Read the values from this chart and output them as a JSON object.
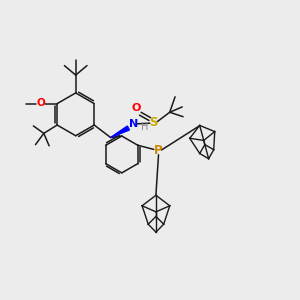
{
  "bg_color": "#ececec",
  "bond_color": "#1a1a1a",
  "colors": {
    "O": "#ff0000",
    "S": "#ccaa00",
    "N": "#0000ff",
    "P": "#cc8800",
    "H": "#888888"
  }
}
